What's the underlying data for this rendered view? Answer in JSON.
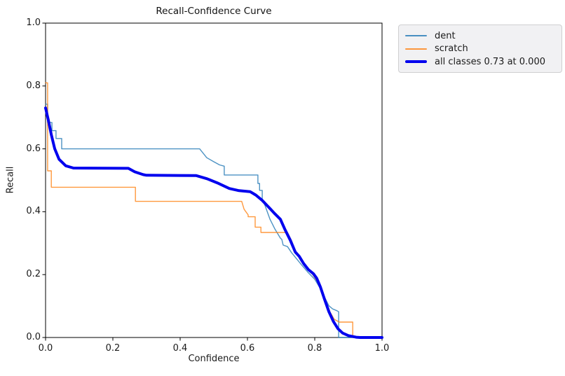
{
  "chart_data": {
    "type": "line",
    "title": "Recall-Confidence Curve",
    "xlabel": "Confidence",
    "ylabel": "Recall",
    "xlim": [
      0.0,
      1.0
    ],
    "ylim": [
      0.0,
      1.0
    ],
    "grid": false,
    "legend_position": "outside-top-right",
    "axis_color": "#000000",
    "x_ticks": [
      {
        "v": 0.0,
        "label": "0.0"
      },
      {
        "v": 0.2,
        "label": "0.2"
      },
      {
        "v": 0.4,
        "label": "0.4"
      },
      {
        "v": 0.6,
        "label": "0.6"
      },
      {
        "v": 0.8,
        "label": "0.8"
      },
      {
        "v": 1.0,
        "label": "1.0"
      }
    ],
    "y_ticks": [
      {
        "v": 0.0,
        "label": "0.0"
      },
      {
        "v": 0.2,
        "label": "0.2"
      },
      {
        "v": 0.4,
        "label": "0.4"
      },
      {
        "v": 0.6,
        "label": "0.6"
      },
      {
        "v": 0.8,
        "label": "0.8"
      },
      {
        "v": 1.0,
        "label": "1.0"
      }
    ],
    "series": [
      {
        "name": "dent",
        "legend_label": "dent",
        "color": "#1f77b4",
        "line_width": 1.4,
        "opacity": 0.8,
        "points": [
          [
            0.0,
            0.742
          ],
          [
            0.006,
            0.742
          ],
          [
            0.006,
            0.684
          ],
          [
            0.019,
            0.684
          ],
          [
            0.019,
            0.658
          ],
          [
            0.031,
            0.658
          ],
          [
            0.031,
            0.633
          ],
          [
            0.048,
            0.633
          ],
          [
            0.048,
            0.6
          ],
          [
            0.458,
            0.6
          ],
          [
            0.479,
            0.572
          ],
          [
            0.5,
            0.559
          ],
          [
            0.517,
            0.549
          ],
          [
            0.531,
            0.545
          ],
          [
            0.531,
            0.517
          ],
          [
            0.631,
            0.517
          ],
          [
            0.631,
            0.49
          ],
          [
            0.636,
            0.49
          ],
          [
            0.636,
            0.468
          ],
          [
            0.644,
            0.468
          ],
          [
            0.644,
            0.44
          ],
          [
            0.652,
            0.42
          ],
          [
            0.667,
            0.376
          ],
          [
            0.681,
            0.346
          ],
          [
            0.698,
            0.316
          ],
          [
            0.702,
            0.312
          ],
          [
            0.706,
            0.294
          ],
          [
            0.719,
            0.289
          ],
          [
            0.731,
            0.27
          ],
          [
            0.76,
            0.232
          ],
          [
            0.781,
            0.206
          ],
          [
            0.8,
            0.185
          ],
          [
            0.817,
            0.155
          ],
          [
            0.831,
            0.124
          ],
          [
            0.842,
            0.101
          ],
          [
            0.853,
            0.091
          ],
          [
            0.866,
            0.085
          ],
          [
            0.871,
            0.082
          ],
          [
            0.871,
            0.0
          ],
          [
            1.0,
            0.0
          ]
        ]
      },
      {
        "name": "scratch",
        "legend_label": "scratch",
        "color": "#ff7f0e",
        "line_width": 1.4,
        "opacity": 0.8,
        "points": [
          [
            0.0,
            0.81
          ],
          [
            0.006,
            0.81
          ],
          [
            0.006,
            0.53
          ],
          [
            0.017,
            0.53
          ],
          [
            0.017,
            0.478
          ],
          [
            0.267,
            0.478
          ],
          [
            0.267,
            0.433
          ],
          [
            0.583,
            0.433
          ],
          [
            0.59,
            0.408
          ],
          [
            0.602,
            0.39
          ],
          [
            0.602,
            0.384
          ],
          [
            0.623,
            0.384
          ],
          [
            0.623,
            0.351
          ],
          [
            0.64,
            0.351
          ],
          [
            0.64,
            0.334
          ],
          [
            0.719,
            0.334
          ],
          [
            0.731,
            0.308
          ],
          [
            0.744,
            0.272
          ],
          [
            0.754,
            0.262
          ],
          [
            0.767,
            0.236
          ],
          [
            0.781,
            0.215
          ],
          [
            0.794,
            0.2
          ],
          [
            0.808,
            0.178
          ],
          [
            0.82,
            0.152
          ],
          [
            0.833,
            0.115
          ],
          [
            0.846,
            0.08
          ],
          [
            0.858,
            0.058
          ],
          [
            0.873,
            0.049
          ],
          [
            0.913,
            0.049
          ],
          [
            0.913,
            0.0
          ],
          [
            1.0,
            0.0
          ]
        ]
      },
      {
        "name": "all_classes",
        "legend_label": "all classes 0.73 at 0.000",
        "color": "#0000ee",
        "line_width": 4,
        "opacity": 1,
        "points": [
          [
            0.0,
            0.73
          ],
          [
            0.008,
            0.693
          ],
          [
            0.017,
            0.645
          ],
          [
            0.027,
            0.601
          ],
          [
            0.04,
            0.567
          ],
          [
            0.06,
            0.546
          ],
          [
            0.083,
            0.539
          ],
          [
            0.246,
            0.538
          ],
          [
            0.265,
            0.527
          ],
          [
            0.29,
            0.518
          ],
          [
            0.3,
            0.516
          ],
          [
            0.448,
            0.515
          ],
          [
            0.48,
            0.505
          ],
          [
            0.51,
            0.492
          ],
          [
            0.546,
            0.474
          ],
          [
            0.575,
            0.467
          ],
          [
            0.608,
            0.464
          ],
          [
            0.625,
            0.453
          ],
          [
            0.644,
            0.436
          ],
          [
            0.667,
            0.41
          ],
          [
            0.681,
            0.394
          ],
          [
            0.698,
            0.376
          ],
          [
            0.712,
            0.342
          ],
          [
            0.727,
            0.31
          ],
          [
            0.742,
            0.272
          ],
          [
            0.754,
            0.258
          ],
          [
            0.767,
            0.235
          ],
          [
            0.781,
            0.216
          ],
          [
            0.796,
            0.203
          ],
          [
            0.806,
            0.188
          ],
          [
            0.817,
            0.16
          ],
          [
            0.829,
            0.122
          ],
          [
            0.842,
            0.082
          ],
          [
            0.856,
            0.05
          ],
          [
            0.869,
            0.028
          ],
          [
            0.883,
            0.014
          ],
          [
            0.9,
            0.006
          ],
          [
            0.923,
            0.001
          ],
          [
            0.935,
            0.0
          ],
          [
            1.0,
            0.0
          ]
        ]
      }
    ]
  }
}
